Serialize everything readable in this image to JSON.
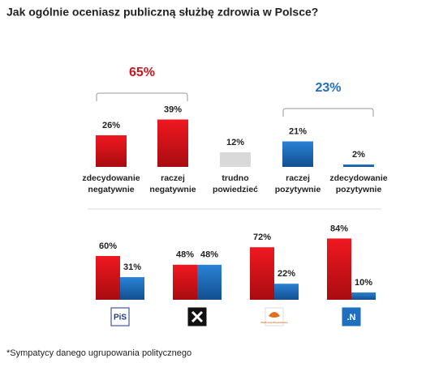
{
  "chart_data": [
    {
      "type": "bar",
      "title": "Jak ogólnie oceniasz publiczną służbę zdrowia w Polsce?",
      "categories": [
        "zdecydowanie\nnegatywnie",
        "raczej\nnegatywnie",
        "trudno\npowiedzieć",
        "raczej\npozytywnie",
        "zdecydowanie\npozytywnie"
      ],
      "values": [
        26,
        39,
        12,
        21,
        2
      ],
      "value_labels": [
        "26%",
        "39%",
        "12%",
        "21%",
        "2%"
      ],
      "colors": [
        "#e8141c",
        "#e8141c",
        "#d9d9d9",
        "#1f6fbf",
        "#1f6fbf"
      ],
      "annotations": [
        {
          "text": "65%",
          "value": 65,
          "color": "#d0141c",
          "span": [
            0,
            1
          ]
        },
        {
          "text": "23%",
          "value": 23,
          "color": "#1f6fbf",
          "span": [
            3,
            4
          ]
        }
      ]
    },
    {
      "type": "grouped_bar",
      "categories": [
        "PiS",
        null,
        "Platforma Obywatelska",
        ".N"
      ],
      "series": [
        {
          "color": "#e8141c",
          "values": [
            60,
            48,
            72,
            84
          ],
          "value_labels": [
            "60%",
            "48%",
            "72%",
            "84%"
          ]
        },
        {
          "color": "#1f6fbf",
          "values": [
            31,
            48,
            22,
            10
          ],
          "value_labels": [
            "31%",
            "48%",
            "22%",
            "10%"
          ]
        }
      ],
      "footnote": "*Sympatycy danego ugrupowania politycznego"
    }
  ]
}
